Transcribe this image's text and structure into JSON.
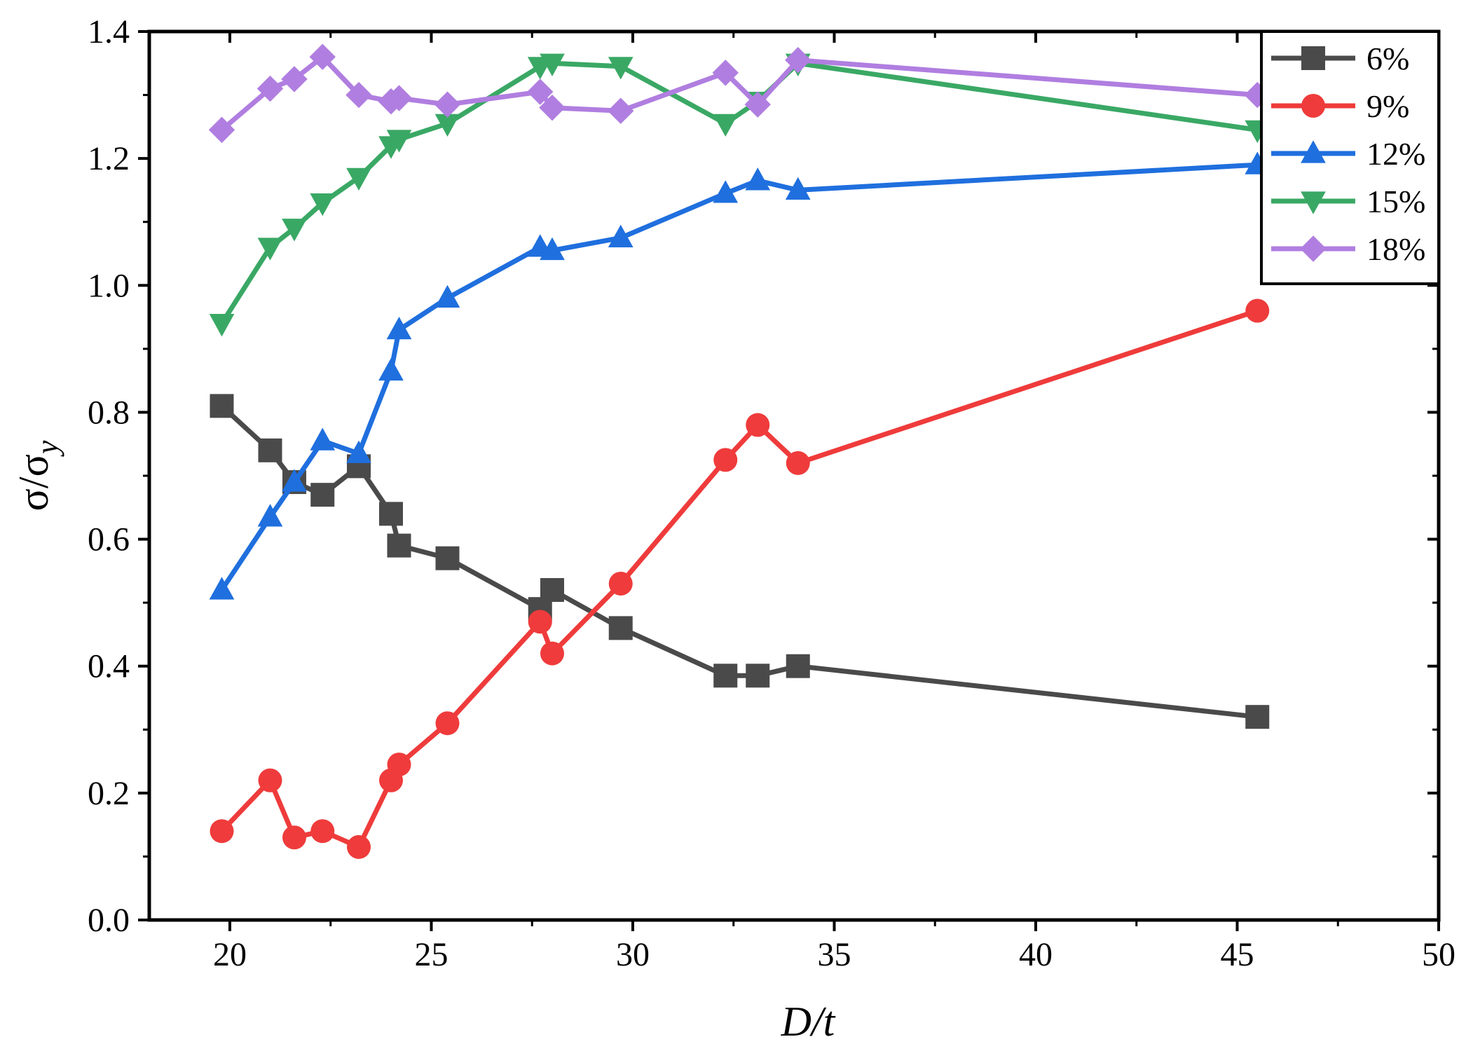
{
  "chart_data": {
    "type": "line",
    "title": "",
    "xlabel": "D/t",
    "ylabel": "σ/σy",
    "xlim": [
      18,
      50
    ],
    "ylim": [
      0,
      1.4
    ],
    "xticks": [
      "20",
      "25",
      "30",
      "35",
      "40",
      "45",
      "50"
    ],
    "yticks": [
      "0.0",
      "0.2",
      "0.4",
      "0.6",
      "0.8",
      "1.0",
      "1.2",
      "1.4"
    ],
    "legend_position": "top-right",
    "series": [
      {
        "name": "6%",
        "color": "#4a4a4a",
        "marker": "square",
        "x": [
          19.8,
          21.0,
          21.6,
          22.3,
          23.2,
          24.0,
          24.2,
          25.4,
          27.7,
          28.0,
          29.7,
          32.3,
          33.1,
          34.1,
          45.5
        ],
        "y": [
          0.81,
          0.74,
          0.69,
          0.67,
          0.715,
          0.64,
          0.59,
          0.57,
          0.49,
          0.52,
          0.46,
          0.385,
          0.385,
          0.4,
          0.32
        ]
      },
      {
        "name": "9%",
        "color": "#ef3b3b",
        "marker": "circle",
        "x": [
          19.8,
          21.0,
          21.6,
          22.3,
          23.2,
          24.0,
          24.2,
          25.4,
          27.7,
          28.0,
          29.7,
          32.3,
          33.1,
          34.1,
          45.5
        ],
        "y": [
          0.14,
          0.22,
          0.13,
          0.14,
          0.115,
          0.22,
          0.245,
          0.31,
          0.47,
          0.42,
          0.53,
          0.725,
          0.78,
          0.72,
          0.96
        ]
      },
      {
        "name": "12%",
        "color": "#1f6fde",
        "marker": "triangle-up",
        "x": [
          19.8,
          21.0,
          21.6,
          22.3,
          23.2,
          24.0,
          24.2,
          25.4,
          27.7,
          28.0,
          29.7,
          32.3,
          33.1,
          34.1,
          45.5
        ],
        "y": [
          0.52,
          0.635,
          0.69,
          0.755,
          0.735,
          0.865,
          0.93,
          0.98,
          1.06,
          1.055,
          1.075,
          1.145,
          1.165,
          1.15,
          1.19
        ]
      },
      {
        "name": "15%",
        "color": "#3aa865",
        "marker": "triangle-down",
        "x": [
          19.8,
          21.0,
          21.6,
          22.3,
          23.2,
          24.0,
          24.2,
          25.4,
          27.7,
          28.0,
          29.7,
          32.3,
          33.1,
          34.1,
          45.5
        ],
        "y": [
          0.94,
          1.06,
          1.09,
          1.13,
          1.17,
          1.22,
          1.23,
          1.255,
          1.345,
          1.35,
          1.345,
          1.255,
          1.29,
          1.35,
          1.245
        ]
      },
      {
        "name": "18%",
        "color": "#b07ee0",
        "marker": "diamond",
        "x": [
          19.8,
          21.0,
          21.6,
          22.3,
          23.2,
          24.0,
          24.2,
          25.4,
          27.7,
          28.0,
          29.7,
          32.3,
          33.1,
          34.1,
          45.5
        ],
        "y": [
          1.245,
          1.31,
          1.325,
          1.36,
          1.3,
          1.29,
          1.295,
          1.285,
          1.305,
          1.28,
          1.275,
          1.335,
          1.285,
          1.355,
          1.3
        ]
      }
    ]
  }
}
